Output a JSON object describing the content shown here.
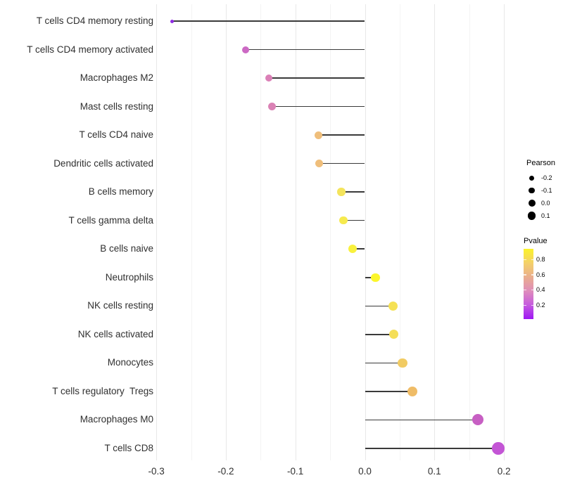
{
  "chart_data": {
    "type": "lollipop",
    "title": "",
    "orientation": "horizontal",
    "x_axis": {
      "major_ticks": [
        -0.3,
        -0.2,
        -0.1,
        0,
        0.1,
        0.2
      ],
      "major_tick_labels": [
        "-0.3",
        "-0.2",
        "-0.1",
        "0.0",
        "0.1",
        "0.2"
      ],
      "minor_ticks": [
        -0.25,
        -0.15,
        -0.05,
        0.05,
        0.15
      ],
      "range": [
        -0.3,
        0.225
      ],
      "baseline": 0
    },
    "rows": [
      {
        "label": "T cells CD4 memory resting",
        "pearson": -0.277,
        "pvalue": 0.06,
        "color": "#8F2BE4",
        "size": 5
      },
      {
        "label": "T cells CD4 memory activated",
        "pearson": -0.172,
        "pvalue": 0.35,
        "color": "#CC69C4",
        "size": 10
      },
      {
        "label": "Macrophages M2",
        "pearson": -0.138,
        "pvalue": 0.45,
        "color": "#DB80B7",
        "size": 10.5
      },
      {
        "label": "Mast cells resting",
        "pearson": -0.134,
        "pvalue": 0.46,
        "color": "#DA82B5",
        "size": 11
      },
      {
        "label": "T cells CD4 naive",
        "pearson": -0.067,
        "pvalue": 0.64,
        "color": "#EFBE7B",
        "size": 11
      },
      {
        "label": "Dendritic cells activated",
        "pearson": -0.066,
        "pvalue": 0.64,
        "color": "#EFBE7B",
        "size": 11
      },
      {
        "label": "B cells memory",
        "pearson": -0.034,
        "pvalue": 0.8,
        "color": "#F4E45C",
        "size": 11.5
      },
      {
        "label": "T cells gamma delta",
        "pearson": -0.031,
        "pvalue": 0.84,
        "color": "#F6EA4E",
        "size": 11.5
      },
      {
        "label": "B cells naive",
        "pearson": -0.018,
        "pvalue": 0.89,
        "color": "#F9F13D",
        "size": 12
      },
      {
        "label": "Neutrophils",
        "pearson": 0.015,
        "pvalue": 0.91,
        "color": "#FCF62B",
        "size": 12.5
      },
      {
        "label": "NK cells resting",
        "pearson": 0.04,
        "pvalue": 0.8,
        "color": "#F5E154",
        "size": 13
      },
      {
        "label": "NK cells activated",
        "pearson": 0.041,
        "pvalue": 0.79,
        "color": "#F4DE58",
        "size": 13
      },
      {
        "label": "Monocytes",
        "pearson": 0.054,
        "pvalue": 0.72,
        "color": "#F1CB63",
        "size": 13.5
      },
      {
        "label": "T cells regulatory  Tregs",
        "pearson": 0.068,
        "pvalue": 0.65,
        "color": "#EFBC67",
        "size": 14
      },
      {
        "label": "Macrophages M0",
        "pearson": 0.162,
        "pvalue": 0.3,
        "color": "#C75FC3",
        "size": 16
      },
      {
        "label": "T cells CD8",
        "pearson": 0.192,
        "pvalue": 0.26,
        "color": "#C355D5",
        "size": 17.5
      }
    ],
    "legend_pearson": {
      "title": "Pearson",
      "dot_color": "#000000",
      "entries": [
        {
          "label": "-0.2",
          "size": 7
        },
        {
          "label": "-0.1",
          "size": 8.5
        },
        {
          "label": "0.0",
          "size": 10
        },
        {
          "label": "0.1",
          "size": 11.5
        }
      ]
    },
    "legend_pvalue": {
      "title": "Pvalue",
      "tick_labels": [
        "0.8",
        "0.6",
        "0.4",
        "0.2"
      ],
      "gradient_top_to_bottom": [
        "#FBF32A",
        "#F4D169",
        "#EAAE8E",
        "#DF8DBB",
        "#C55BDF",
        "#9E16F3"
      ]
    },
    "colors": {
      "stem": "#3A3A3A",
      "grid_major": "#E8E8E8",
      "grid_minor": "#F4F4F4",
      "axis_text": "#303030",
      "background": "#FFFFFF"
    }
  }
}
